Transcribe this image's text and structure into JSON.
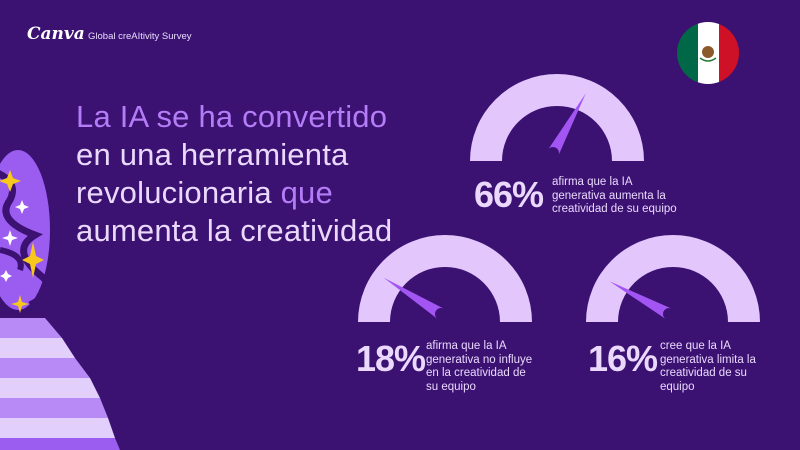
{
  "brand": {
    "logo": "Canva",
    "survey": "Global creAItivity Survey"
  },
  "headline": {
    "part1": "La IA se ha convertido",
    "part2": " en una herramienta revolucionaria ",
    "part3": "que",
    "part4": " aumenta la creatividad"
  },
  "flag": {
    "country": "Mexico",
    "colors": [
      "#006847",
      "#ffffff",
      "#ce1126"
    ]
  },
  "colors": {
    "background": "#3b1272",
    "gauge": "#e2c6fc",
    "needle": "#a355f4",
    "highlight": "#b47cf6"
  },
  "stats": [
    {
      "percent": 66,
      "value": "66%",
      "text": "afirma que la IA generativa aumenta la creatividad de su equipo"
    },
    {
      "percent": 18,
      "value": "18%",
      "text": "afirma que la IA generativa no influye en la creatividad de su equipo"
    },
    {
      "percent": 16,
      "value": "16%",
      "text": "cree que la IA generativa limita la creatividad de su equipo"
    }
  ]
}
